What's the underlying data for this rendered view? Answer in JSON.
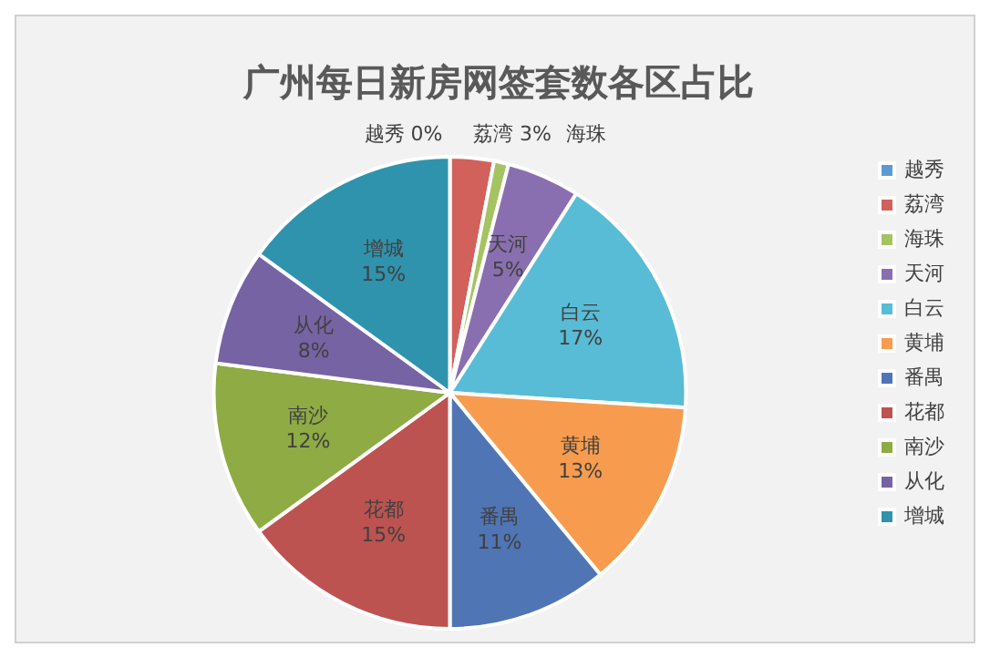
{
  "chart_data": {
    "type": "pie",
    "title": "广州每日新房网签套数各区占比",
    "categories": [
      "越秀",
      "荔湾",
      "海珠",
      "天河",
      "白云",
      "黄埔",
      "番禺",
      "花都",
      "南沙",
      "从化",
      "增城"
    ],
    "values": [
      0,
      3,
      1,
      5,
      17,
      13,
      11,
      15,
      12,
      8,
      15
    ],
    "value_labels": [
      "0%",
      "3%",
      null,
      "5%",
      "17%",
      "13%",
      "11%",
      "15%",
      "12%",
      "8%",
      "15%"
    ],
    "colors": [
      "#5b9bd5",
      "#d2605b",
      "#a5c461",
      "#8a6fb0",
      "#58bcd6",
      "#f79c4e",
      "#5075b5",
      "#bd5350",
      "#8eab44",
      "#7663a4",
      "#2f93ad"
    ],
    "legend": "right"
  }
}
